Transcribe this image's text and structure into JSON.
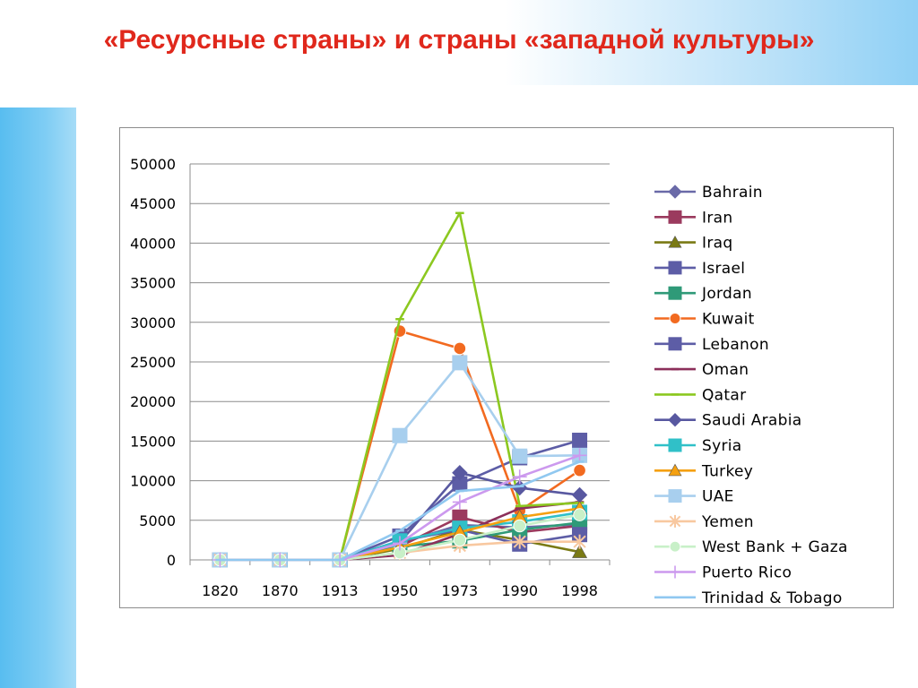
{
  "slide": {
    "title": "«Ресурсные страны» и страны «западной культуры»"
  },
  "chart_data": {
    "type": "line",
    "title": "",
    "xlabel": "",
    "ylabel": "",
    "categories": [
      "1820",
      "1870",
      "1913",
      "1950",
      "1973",
      "1990",
      "1998"
    ],
    "ylim": [
      0,
      50000
    ],
    "yticks": [
      0,
      5000,
      10000,
      15000,
      20000,
      25000,
      30000,
      35000,
      40000,
      45000,
      50000
    ],
    "grid": "horizontal",
    "legend_position": "right",
    "series": [
      {
        "name": "Bahrain",
        "color": "#6a6aa8",
        "marker": "diamond",
        "values": [
          0,
          0,
          0,
          2100,
          4400,
          4100,
          4500
        ]
      },
      {
        "name": "Iran",
        "color": "#9b3a5e",
        "marker": "square",
        "values": [
          0,
          0,
          0,
          1700,
          5400,
          3500,
          4300
        ]
      },
      {
        "name": "Iraq",
        "color": "#7a7a14",
        "marker": "triangle",
        "values": [
          0,
          0,
          0,
          1400,
          3800,
          2500,
          1000
        ]
      },
      {
        "name": "Israel",
        "color": "#5d5da6",
        "marker": "square",
        "values": [
          0,
          0,
          0,
          3000,
          9600,
          12900,
          15100
        ]
      },
      {
        "name": "Jordan",
        "color": "#2f9a78",
        "marker": "square",
        "values": [
          0,
          0,
          0,
          1700,
          2400,
          3800,
          4700
        ]
      },
      {
        "name": "Kuwait",
        "color": "#f26a20",
        "marker": "circle",
        "values": [
          0,
          0,
          0,
          28900,
          26700,
          6200,
          11300
        ]
      },
      {
        "name": "Lebanon",
        "color": "#5d5da6",
        "marker": "square",
        "values": [
          0,
          0,
          0,
          2400,
          3800,
          2000,
          3200
        ]
      },
      {
        "name": "Oman",
        "color": "#8c2f5a",
        "marker": "dash",
        "values": [
          0,
          0,
          0,
          600,
          3300,
          6500,
          7300
        ]
      },
      {
        "name": "Qatar",
        "color": "#8cc820",
        "marker": "dash",
        "values": [
          0,
          0,
          0,
          30400,
          43800,
          6800,
          7200
        ]
      },
      {
        "name": "Saudi Arabia",
        "color": "#5858a0",
        "marker": "diamond",
        "values": [
          0,
          0,
          0,
          2200,
          11000,
          9100,
          8200
        ]
      },
      {
        "name": "Syria",
        "color": "#30c0c8",
        "marker": "square",
        "values": [
          0,
          0,
          0,
          2400,
          4000,
          4800,
          6000
        ]
      },
      {
        "name": "Turkey",
        "color": "#f5a010",
        "marker": "triangle",
        "values": [
          0,
          0,
          0,
          1600,
          3500,
          5400,
          6500
        ]
      },
      {
        "name": "UAE",
        "color": "#a8cfee",
        "marker": "square",
        "values": [
          0,
          0,
          0,
          15700,
          24900,
          13100,
          13200
        ]
      },
      {
        "name": "Yemen",
        "color": "#f8c8a0",
        "marker": "star",
        "values": [
          0,
          0,
          0,
          900,
          1800,
          2300,
          2300
        ]
      },
      {
        "name": "West Bank + Gaza",
        "color": "#c8f0c8",
        "marker": "circle",
        "values": [
          0,
          0,
          0,
          900,
          2500,
          4300,
          5700
        ]
      },
      {
        "name": "Puerto Rico",
        "color": "#cc99ee",
        "marker": "plus",
        "values": [
          0,
          0,
          0,
          2100,
          7300,
          10500,
          13200
        ]
      },
      {
        "name": "Trinidad & Tobago",
        "color": "#90c8f0",
        "marker": "dash",
        "values": [
          0,
          0,
          0,
          3700,
          8700,
          9300,
          12400
        ]
      }
    ]
  }
}
